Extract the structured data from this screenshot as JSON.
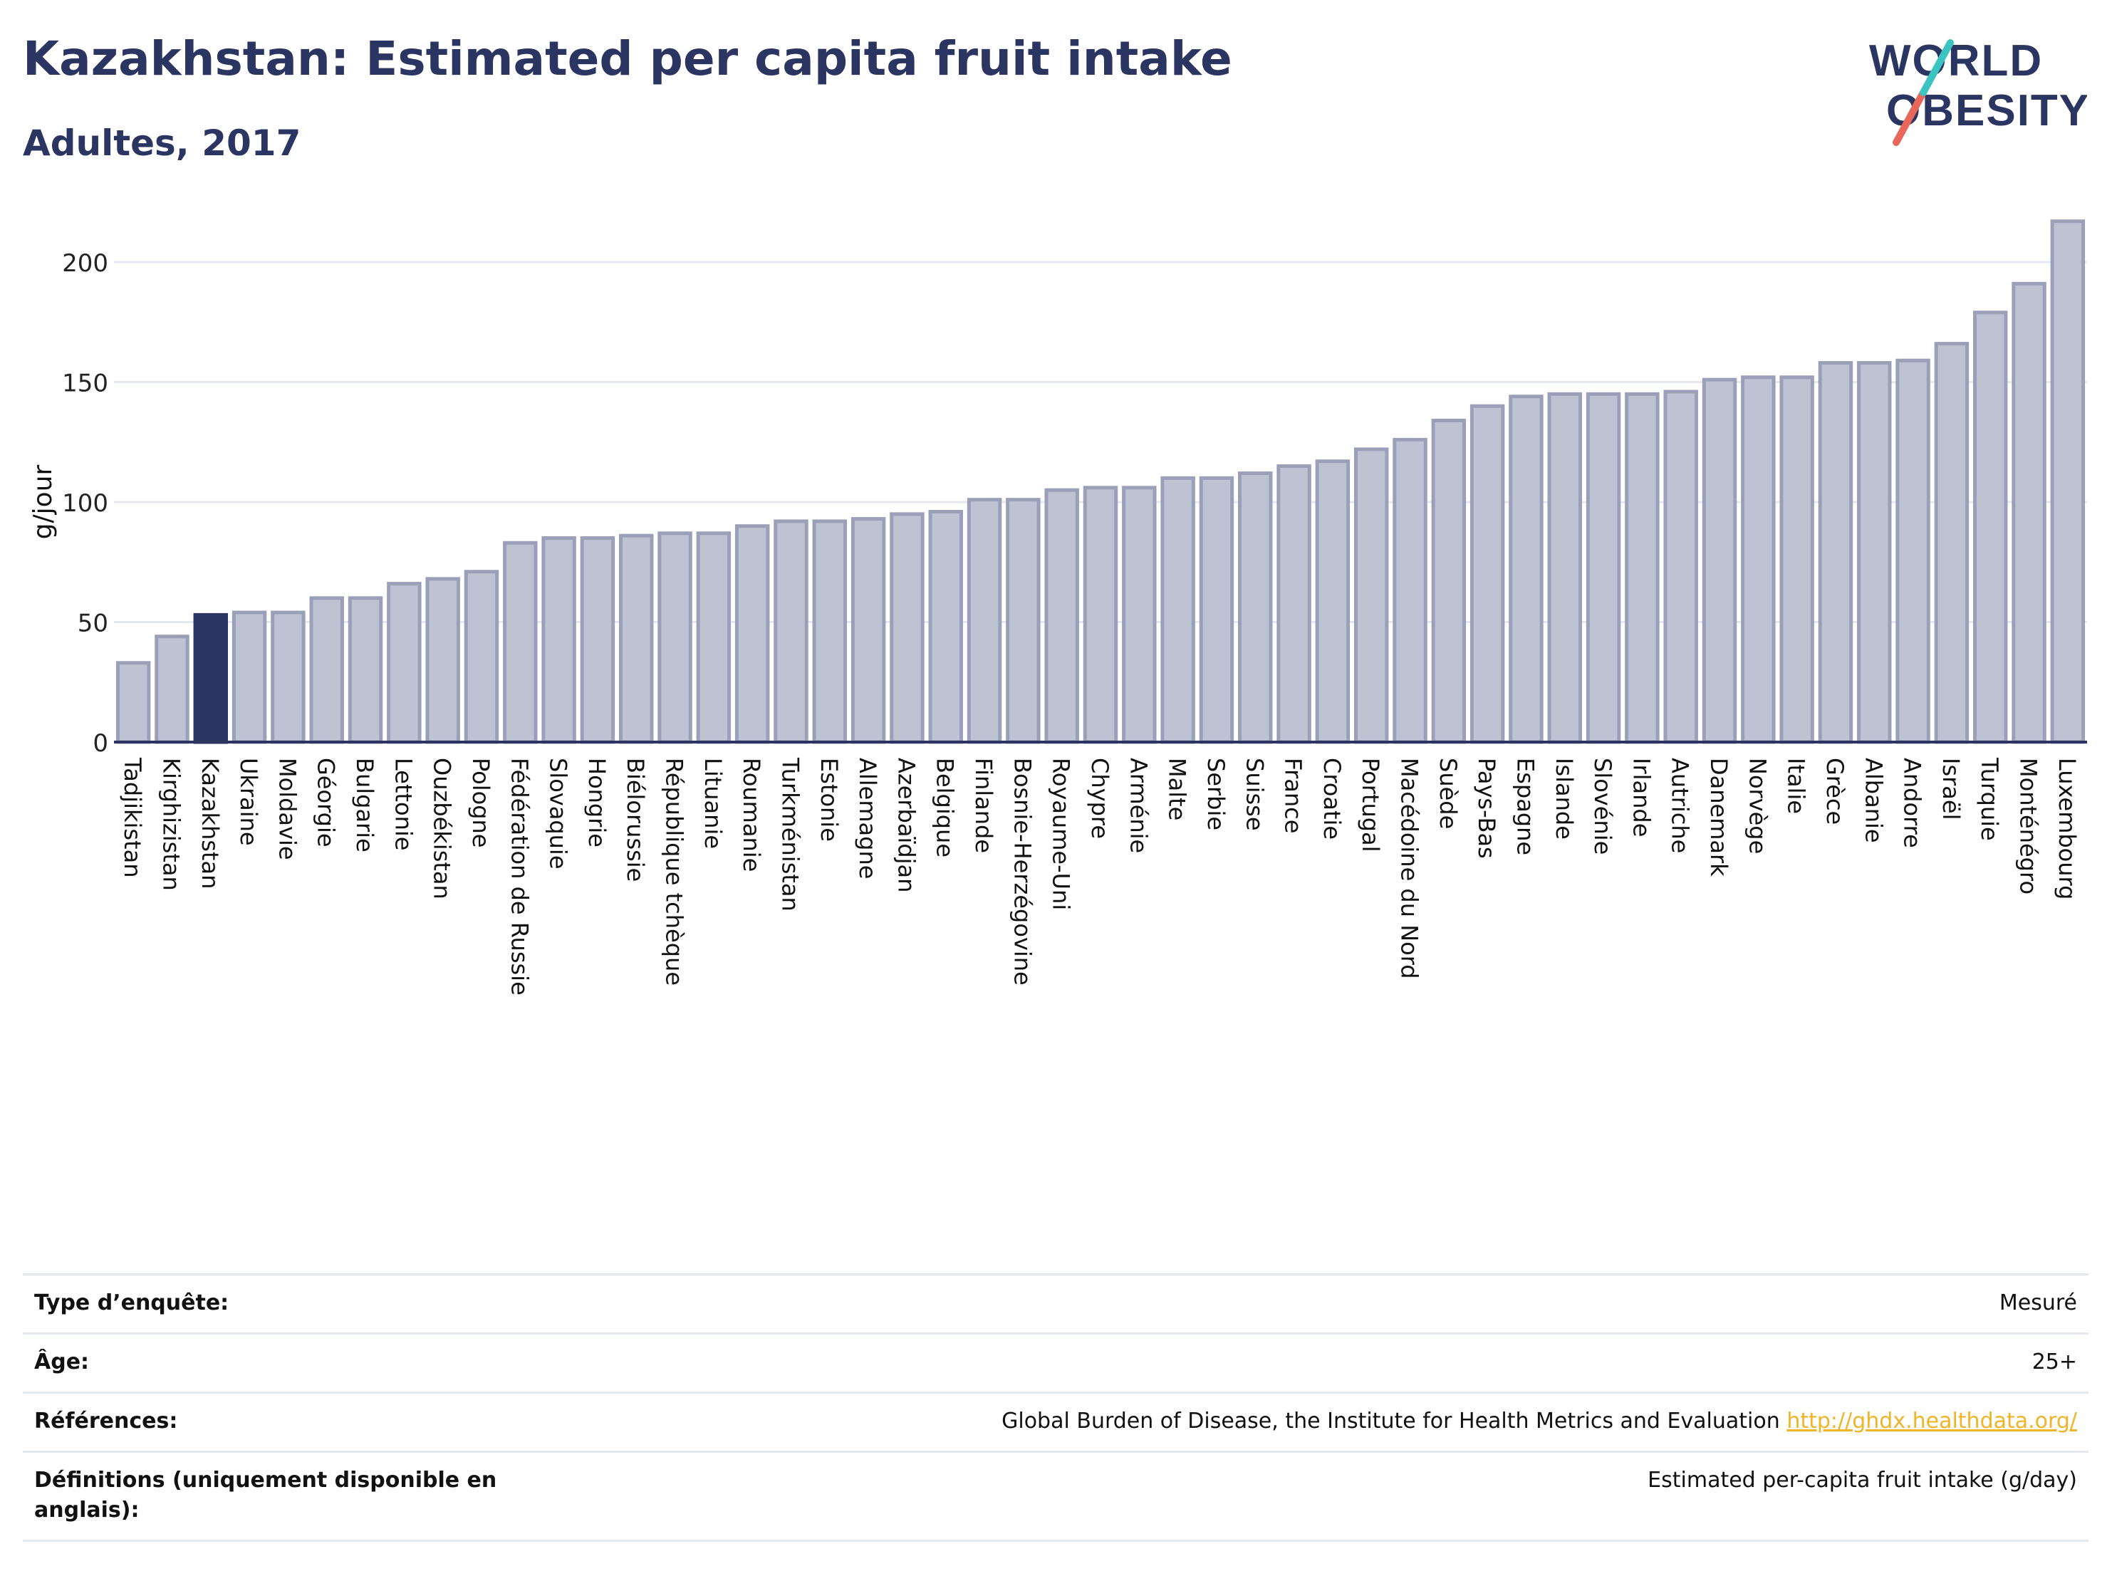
{
  "title": "Kazakhstan: Estimated per capita fruit intake",
  "subtitle": "Adultes, 2017",
  "logo": {
    "line1": "WORLD",
    "line2": "OBESITY"
  },
  "colors": {
    "bar": "#bec3d4",
    "bar_edge": "#9aa0b8",
    "highlight": "#2b3561",
    "title": "#2b3561",
    "link": "#f0b429"
  },
  "chart_data": {
    "type": "bar",
    "ylabel": "g/jour",
    "xlabel": "",
    "ylim": [
      0,
      225
    ],
    "yticks": [
      0,
      50,
      100,
      150,
      200
    ],
    "grid": true,
    "highlight": "Kazakhstan",
    "categories": [
      "Tadjikistan",
      "Kirghizistan",
      "Kazakhstan",
      "Ukraine",
      "Moldavie",
      "Géorgie",
      "Bulgarie",
      "Lettonie",
      "Ouzbékistan",
      "Pologne",
      "Fédération de Russie",
      "Slovaquie",
      "Hongrie",
      "Biélorussie",
      "République tchèque",
      "Lituanie",
      "Roumanie",
      "Turkménistan",
      "Estonie",
      "Allemagne",
      "Azerbaïdjan",
      "Belgique",
      "Finlande",
      "Bosnie-Herzégovine",
      "Royaume-Uni",
      "Chypre",
      "Arménie",
      "Malte",
      "Serbie",
      "Suisse",
      "France",
      "Croatie",
      "Portugal",
      "Macédoine du Nord",
      "Suède",
      "Pays-Bas",
      "Espagne",
      "Islande",
      "Slovénie",
      "Irlande",
      "Autriche",
      "Danemark",
      "Norvège",
      "Italie",
      "Grèce",
      "Albanie",
      "Andorre",
      "Israël",
      "Turquie",
      "Monténégro",
      "Luxembourg"
    ],
    "values": [
      33,
      44,
      53,
      54,
      54,
      60,
      60,
      66,
      68,
      71,
      83,
      85,
      85,
      86,
      87,
      87,
      90,
      92,
      92,
      93,
      95,
      96,
      101,
      101,
      105,
      106,
      106,
      110,
      110,
      112,
      115,
      117,
      122,
      126,
      134,
      140,
      144,
      145,
      145,
      145,
      146,
      151,
      152,
      152,
      158,
      158,
      159,
      166,
      179,
      191,
      217
    ]
  },
  "info": [
    {
      "label": "Type d’enquête:",
      "value": "Mesuré"
    },
    {
      "label": "Âge:",
      "value": "25+"
    },
    {
      "label": "Références:",
      "value": "Global Burden of Disease, the Institute for Health Metrics and Evaluation",
      "link": "http://ghdx.healthdata.org/"
    },
    {
      "label": "Définitions (uniquement disponible en anglais):",
      "value": "Estimated per-capita fruit intake (g/day)"
    }
  ]
}
